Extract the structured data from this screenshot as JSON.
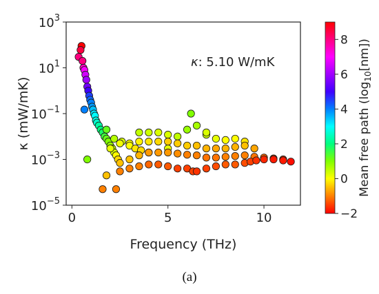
{
  "figure": {
    "caption": "(a)",
    "annotation": {
      "symbol": "κ",
      "text": ": 5.10 W/mK"
    }
  },
  "chart_data": {
    "type": "scatter",
    "title": "",
    "xlabel": "Frequency (THz)",
    "ylabel": "κ (mW/mK)",
    "xlim": [
      -0.3,
      11.9
    ],
    "ylim": [
      1e-05,
      1000
    ],
    "yscale": "log",
    "xticks": [
      "0",
      "5",
      "10"
    ],
    "yticks": [
      {
        "base": "10",
        "exp": "3"
      },
      {
        "base": "10",
        "exp": "1"
      },
      {
        "base": "10",
        "exp": "−1"
      },
      {
        "base": "10",
        "exp": "−3"
      },
      {
        "base": "10",
        "exp": "−5"
      }
    ],
    "grid": false,
    "colorbar": {
      "label_prefix": "Mean free path (log",
      "label_sub": "10",
      "label_suffix": "[nm])",
      "range": [
        -2,
        9
      ],
      "ticks": [
        "8",
        "6",
        "4",
        "2",
        "0",
        "−2"
      ]
    },
    "colors": {
      "edge": "#1a1a1a",
      "axis": "#222222",
      "colormap": [
        "#ff0000",
        "#ff8000",
        "#ffff00",
        "#80ff00",
        "#00ff80",
        "#00ffff",
        "#0080ff",
        "#4000ff",
        "#a000ff",
        "#ff00ff",
        "#ff0080",
        "#ff0000"
      ]
    },
    "series": [
      {
        "x": [
          0.35,
          0.45,
          0.5,
          0.55,
          0.6,
          0.65,
          0.7,
          0.75,
          0.8,
          0.85,
          0.9,
          0.95,
          1.0,
          1.05,
          1.1,
          1.15,
          1.2,
          1.25,
          1.3,
          1.4,
          1.5,
          1.6,
          1.7,
          1.8,
          1.9,
          2.0,
          2.1,
          2.2,
          2.3,
          2.4,
          2.5,
          0.65,
          0.8,
          1.6,
          1.8,
          2.3,
          2.5,
          3.0,
          3.5,
          4.0,
          4.5,
          5.0,
          5.5,
          6.0,
          6.3,
          6.5,
          7.0,
          7.5,
          8.0,
          8.5,
          9.0,
          9.3,
          9.6,
          10.0,
          10.5,
          11.0,
          11.4,
          3.0,
          3.5,
          4.0,
          4.5,
          5.0,
          5.5,
          6.0,
          6.5,
          7.0,
          7.5,
          8.0,
          8.5,
          9.0,
          9.5,
          10.0,
          10.5,
          11.0,
          2.0,
          2.5,
          3.0,
          3.5,
          4.0,
          4.5,
          5.0,
          5.5,
          6.0,
          6.5,
          7.0,
          7.5,
          8.0,
          8.5,
          9.0,
          9.5,
          3.5,
          4.0,
          4.5,
          5.0,
          5.5,
          6.0,
          6.5,
          7.0,
          7.5,
          8.0,
          8.5,
          9.0,
          1.8,
          2.2,
          2.6,
          3.0,
          3.3,
          3.6,
          4.0,
          5.0,
          6.2,
          7.0
        ],
        "y": [
          30,
          60,
          90,
          20,
          10,
          8,
          5,
          3,
          1.5,
          1,
          0.6,
          0.4,
          0.3,
          0.2,
          0.15,
          0.1,
          0.08,
          0.05,
          0.04,
          0.03,
          0.02,
          0.015,
          0.01,
          0.008,
          0.006,
          0.004,
          0.003,
          0.002,
          0.0015,
          0.001,
          0.0007,
          0.15,
          0.001,
          5e-05,
          0.0002,
          5e-05,
          0.0003,
          0.0004,
          0.0005,
          0.0006,
          0.0006,
          0.0005,
          0.0004,
          0.0004,
          0.0003,
          0.0003,
          0.0004,
          0.0005,
          0.0006,
          0.0006,
          0.0007,
          0.0008,
          0.0009,
          0.001,
          0.001,
          0.0009,
          0.0008,
          0.001,
          0.0015,
          0.002,
          0.002,
          0.002,
          0.0018,
          0.0016,
          0.0015,
          0.0012,
          0.0012,
          0.0013,
          0.0014,
          0.0015,
          0.0013,
          0.0012,
          0.0011,
          0.001,
          0.003,
          0.005,
          0.005,
          0.006,
          0.006,
          0.006,
          0.006,
          0.005,
          0.004,
          0.004,
          0.003,
          0.003,
          0.003,
          0.0035,
          0.004,
          0.003,
          0.015,
          0.015,
          0.015,
          0.012,
          0.01,
          0.02,
          0.03,
          0.012,
          0.008,
          0.007,
          0.008,
          0.006,
          0.02,
          0.008,
          0.006,
          0.004,
          0.003,
          0.0025,
          0.002,
          0.003,
          0.1,
          0.015
        ],
        "mfp_log10nm": [
          8,
          8.5,
          9,
          8,
          7.5,
          7,
          6.5,
          6,
          5.5,
          5,
          4.5,
          4.2,
          4,
          3.8,
          3.5,
          3.2,
          3,
          2.8,
          2.6,
          2.3,
          2,
          1.8,
          1.5,
          1.2,
          1,
          0.8,
          0.5,
          0.3,
          0,
          -0.3,
          -0.5,
          4,
          1,
          -1,
          -0.5,
          -1,
          -1,
          -1,
          -1,
          -1.2,
          -1.3,
          -1.3,
          -1.5,
          -1.5,
          -1.5,
          -1.6,
          -1.5,
          -1.4,
          -1.3,
          -1.3,
          -1.4,
          -1.5,
          -1.6,
          -1.7,
          -1.8,
          -1.8,
          -1.9,
          -0.5,
          -0.6,
          -0.8,
          -0.8,
          -0.8,
          -0.9,
          -1,
          -1,
          -1.1,
          -1.1,
          -1,
          -1,
          -1,
          -1.1,
          -1.2,
          -1.3,
          -1.5,
          0.2,
          0.1,
          0,
          -0.1,
          -0.2,
          -0.3,
          -0.4,
          -0.4,
          -0.4,
          -0.5,
          -0.6,
          -0.7,
          -0.6,
          -0.6,
          -0.5,
          -0.7,
          0.5,
          0.4,
          0.3,
          0.3,
          0.5,
          0.8,
          0.7,
          0.4,
          0.2,
          0,
          0,
          -0.2,
          1.2,
          0.6,
          0.3,
          0,
          -0.2,
          -0.3,
          -0.5,
          0.2,
          1.0,
          0.3
        ]
      }
    ]
  }
}
